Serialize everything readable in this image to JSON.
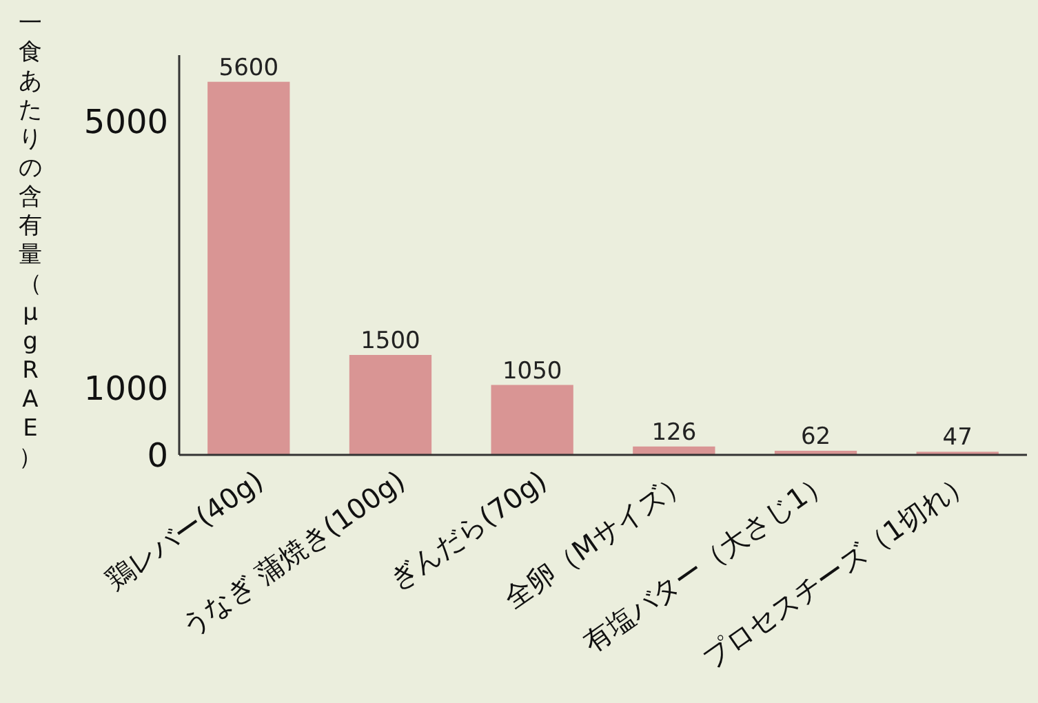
{
  "chart_data": {
    "type": "bar",
    "ylabel": "一食あたりの含有量（μgRAE）",
    "categories": [
      "鶏レバー(40g)",
      "うなぎ 蒲焼き(100g)",
      "ぎんだら(70g)",
      "全卵（Mサイズ）",
      "有塩バター（大さじ1）",
      "プロセスチーズ（1切れ）"
    ],
    "values": [
      5600,
      1500,
      1050,
      126,
      62,
      47
    ],
    "color": "#d99594",
    "ylim": [
      0,
      6000
    ],
    "yticks": [
      0,
      1000,
      5000
    ],
    "data_labels": true,
    "grid": false
  }
}
